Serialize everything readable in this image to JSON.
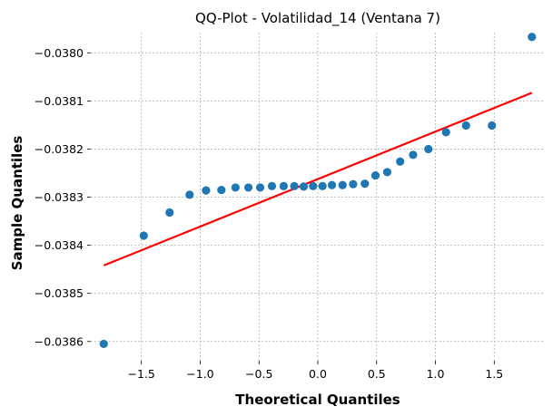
{
  "chart_data": {
    "type": "scatter",
    "title": "QQ-Plot - Volatilidad_14 (Ventana 7)",
    "xlabel": "Theoretical Quantiles",
    "ylabel": "Sample Quantiles",
    "xlim": [
      -1.93,
      1.93
    ],
    "ylim": [
      -0.03864,
      -0.037958
    ],
    "xticks": [
      -1.5,
      -1.0,
      -0.5,
      0.0,
      0.5,
      1.0,
      1.5
    ],
    "xtick_labels": [
      "−1.5",
      "−1.0",
      "−0.5",
      "0.0",
      "0.5",
      "1.0",
      "1.5"
    ],
    "yticks": [
      -0.038,
      -0.0381,
      -0.0382,
      -0.0383,
      -0.0384,
      -0.0385,
      -0.0386
    ],
    "ytick_labels": [
      "−0.0380",
      "−0.0381",
      "−0.0382",
      "−0.0383",
      "−0.0384",
      "−0.0385",
      "−0.0386"
    ],
    "grid": true,
    "points_color": "#1f77b4",
    "line_color": "#ff0000",
    "points": [
      {
        "x": -1.82,
        "y": -0.038605
      },
      {
        "x": -1.48,
        "y": -0.03838
      },
      {
        "x": -1.26,
        "y": -0.038332
      },
      {
        "x": -1.09,
        "y": -0.038295
      },
      {
        "x": -0.95,
        "y": -0.038286
      },
      {
        "x": -0.82,
        "y": -0.038285
      },
      {
        "x": -0.7,
        "y": -0.03828
      },
      {
        "x": -0.59,
        "y": -0.03828
      },
      {
        "x": -0.49,
        "y": -0.03828
      },
      {
        "x": -0.39,
        "y": -0.038277
      },
      {
        "x": -0.29,
        "y": -0.038277
      },
      {
        "x": -0.2,
        "y": -0.038277
      },
      {
        "x": -0.12,
        "y": -0.038278
      },
      {
        "x": -0.04,
        "y": -0.038277
      },
      {
        "x": 0.04,
        "y": -0.038277
      },
      {
        "x": 0.12,
        "y": -0.038275
      },
      {
        "x": 0.21,
        "y": -0.038275
      },
      {
        "x": 0.3,
        "y": -0.038273
      },
      {
        "x": 0.4,
        "y": -0.038272
      },
      {
        "x": 0.49,
        "y": -0.038255
      },
      {
        "x": 0.59,
        "y": -0.038248
      },
      {
        "x": 0.7,
        "y": -0.038226
      },
      {
        "x": 0.81,
        "y": -0.038212
      },
      {
        "x": 0.94,
        "y": -0.0382
      },
      {
        "x": 1.09,
        "y": -0.038165
      },
      {
        "x": 1.26,
        "y": -0.038151
      },
      {
        "x": 1.48,
        "y": -0.038151
      },
      {
        "x": 1.82,
        "y": -0.037967
      }
    ],
    "fit_line": {
      "x": [
        -1.82,
        1.82
      ],
      "y": [
        -0.038442,
        -0.038083
      ]
    }
  }
}
